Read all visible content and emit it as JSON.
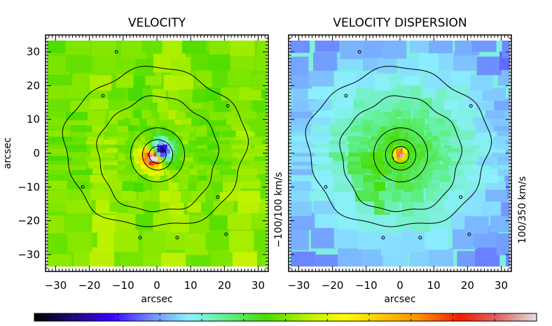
{
  "chart_data": [
    {
      "type": "heatmap",
      "title": "VELOCITY",
      "xlabel": "arcsec",
      "ylabel": "arcsec",
      "right_label": "−100/100 km/s",
      "xlim": [
        -33,
        33
      ],
      "ylim": [
        -35,
        35
      ],
      "xticks": [
        -30,
        -20,
        -10,
        0,
        10,
        20,
        30
      ],
      "yticks": [
        -30,
        -20,
        -10,
        0,
        10,
        20,
        30
      ],
      "xtick_labels": [
        "−30",
        "−20",
        "−10",
        "0",
        "10",
        "20",
        "30"
      ],
      "ytick_labels": [
        "−30",
        "−20",
        "−10",
        "0",
        "10",
        "20",
        "30"
      ],
      "value_range": [
        -100,
        100
      ],
      "units": "km/s",
      "field": "rotation",
      "center": [
        0,
        0
      ],
      "peak_approaching": {
        "x": 1,
        "y": 2,
        "value": -100
      },
      "peak_receding": {
        "x": -1,
        "y": -1,
        "value": 100
      },
      "contours_arcsec_radius": [
        2.5,
        4.5,
        8,
        17,
        24
      ]
    },
    {
      "type": "heatmap",
      "title": "VELOCITY DISPERSION",
      "xlabel": "arcsec",
      "ylabel": "",
      "right_label": "100/350 km/s",
      "xlim": [
        -33,
        33
      ],
      "ylim": [
        -35,
        35
      ],
      "xticks": [
        -30,
        -20,
        -10,
        0,
        10,
        20,
        30
      ],
      "yticks": [
        -30,
        -20,
        -10,
        0,
        10,
        20,
        30
      ],
      "xtick_labels": [
        "−30",
        "−20",
        "−10",
        "0",
        "10",
        "20",
        "30"
      ],
      "value_range": [
        100,
        350
      ],
      "units": "km/s",
      "field": "dispersion",
      "center_value": 330,
      "contours_arcsec_radius": [
        2.5,
        4.5,
        8,
        17,
        24
      ]
    }
  ],
  "colorbar": {
    "stops": [
      "#000000",
      "#1e0a78",
      "#3c00ff",
      "#6e8cff",
      "#8cf0ff",
      "#5ef08c",
      "#46dc00",
      "#b4f000",
      "#ffff00",
      "#ffc800",
      "#ff8c00",
      "#f01e00",
      "#e06464",
      "#e0e0e0"
    ],
    "ticks": 12
  }
}
